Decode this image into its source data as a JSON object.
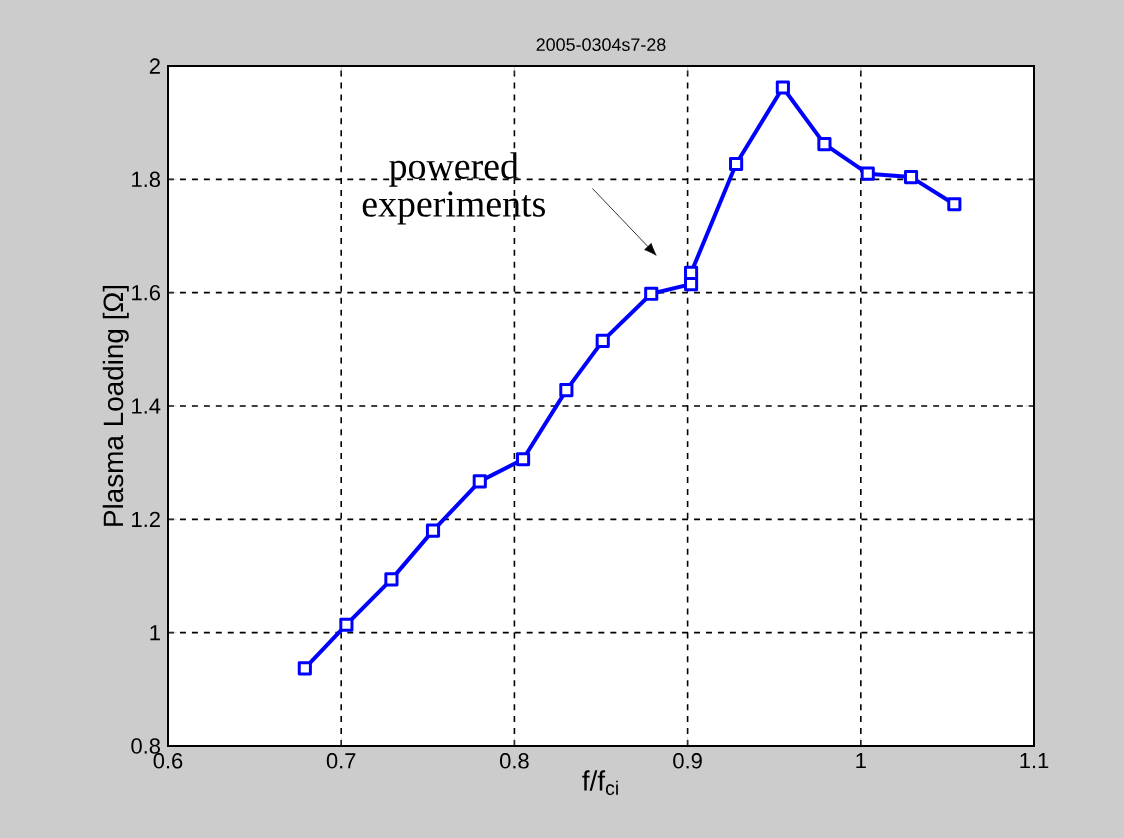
{
  "chart_data": {
    "type": "line",
    "title": "2005-0304s7-28",
    "xlabel": "f/f$_{ci}$",
    "ylabel": "Plasma Loading [Ω]",
    "x": [
      0.679,
      0.703,
      0.729,
      0.753,
      0.78,
      0.805,
      0.83,
      0.851,
      0.879,
      0.902,
      0.902,
      0.928,
      0.955,
      0.979,
      1.004,
      1.029,
      1.054
    ],
    "series": [
      {
        "color": "#0000ff",
        "values": [
          0.937,
          1.014,
          1.094,
          1.18,
          1.267,
          1.306,
          1.428,
          1.515,
          1.598,
          1.615,
          1.635,
          1.827,
          1.962,
          1.862,
          1.81,
          1.804,
          1.756
        ]
      }
    ],
    "xlim": [
      0.6,
      1.1
    ],
    "ylim": [
      0.8,
      2
    ],
    "xticks": [
      0.6,
      0.7,
      0.8,
      0.9,
      1,
      1.1
    ],
    "yticks": [
      0.8,
      1,
      1.2,
      1.4,
      1.6,
      1.8,
      2
    ],
    "grid": true,
    "marker": "square",
    "line_style": "solid",
    "annotations": [
      "powered experiments"
    ]
  }
}
